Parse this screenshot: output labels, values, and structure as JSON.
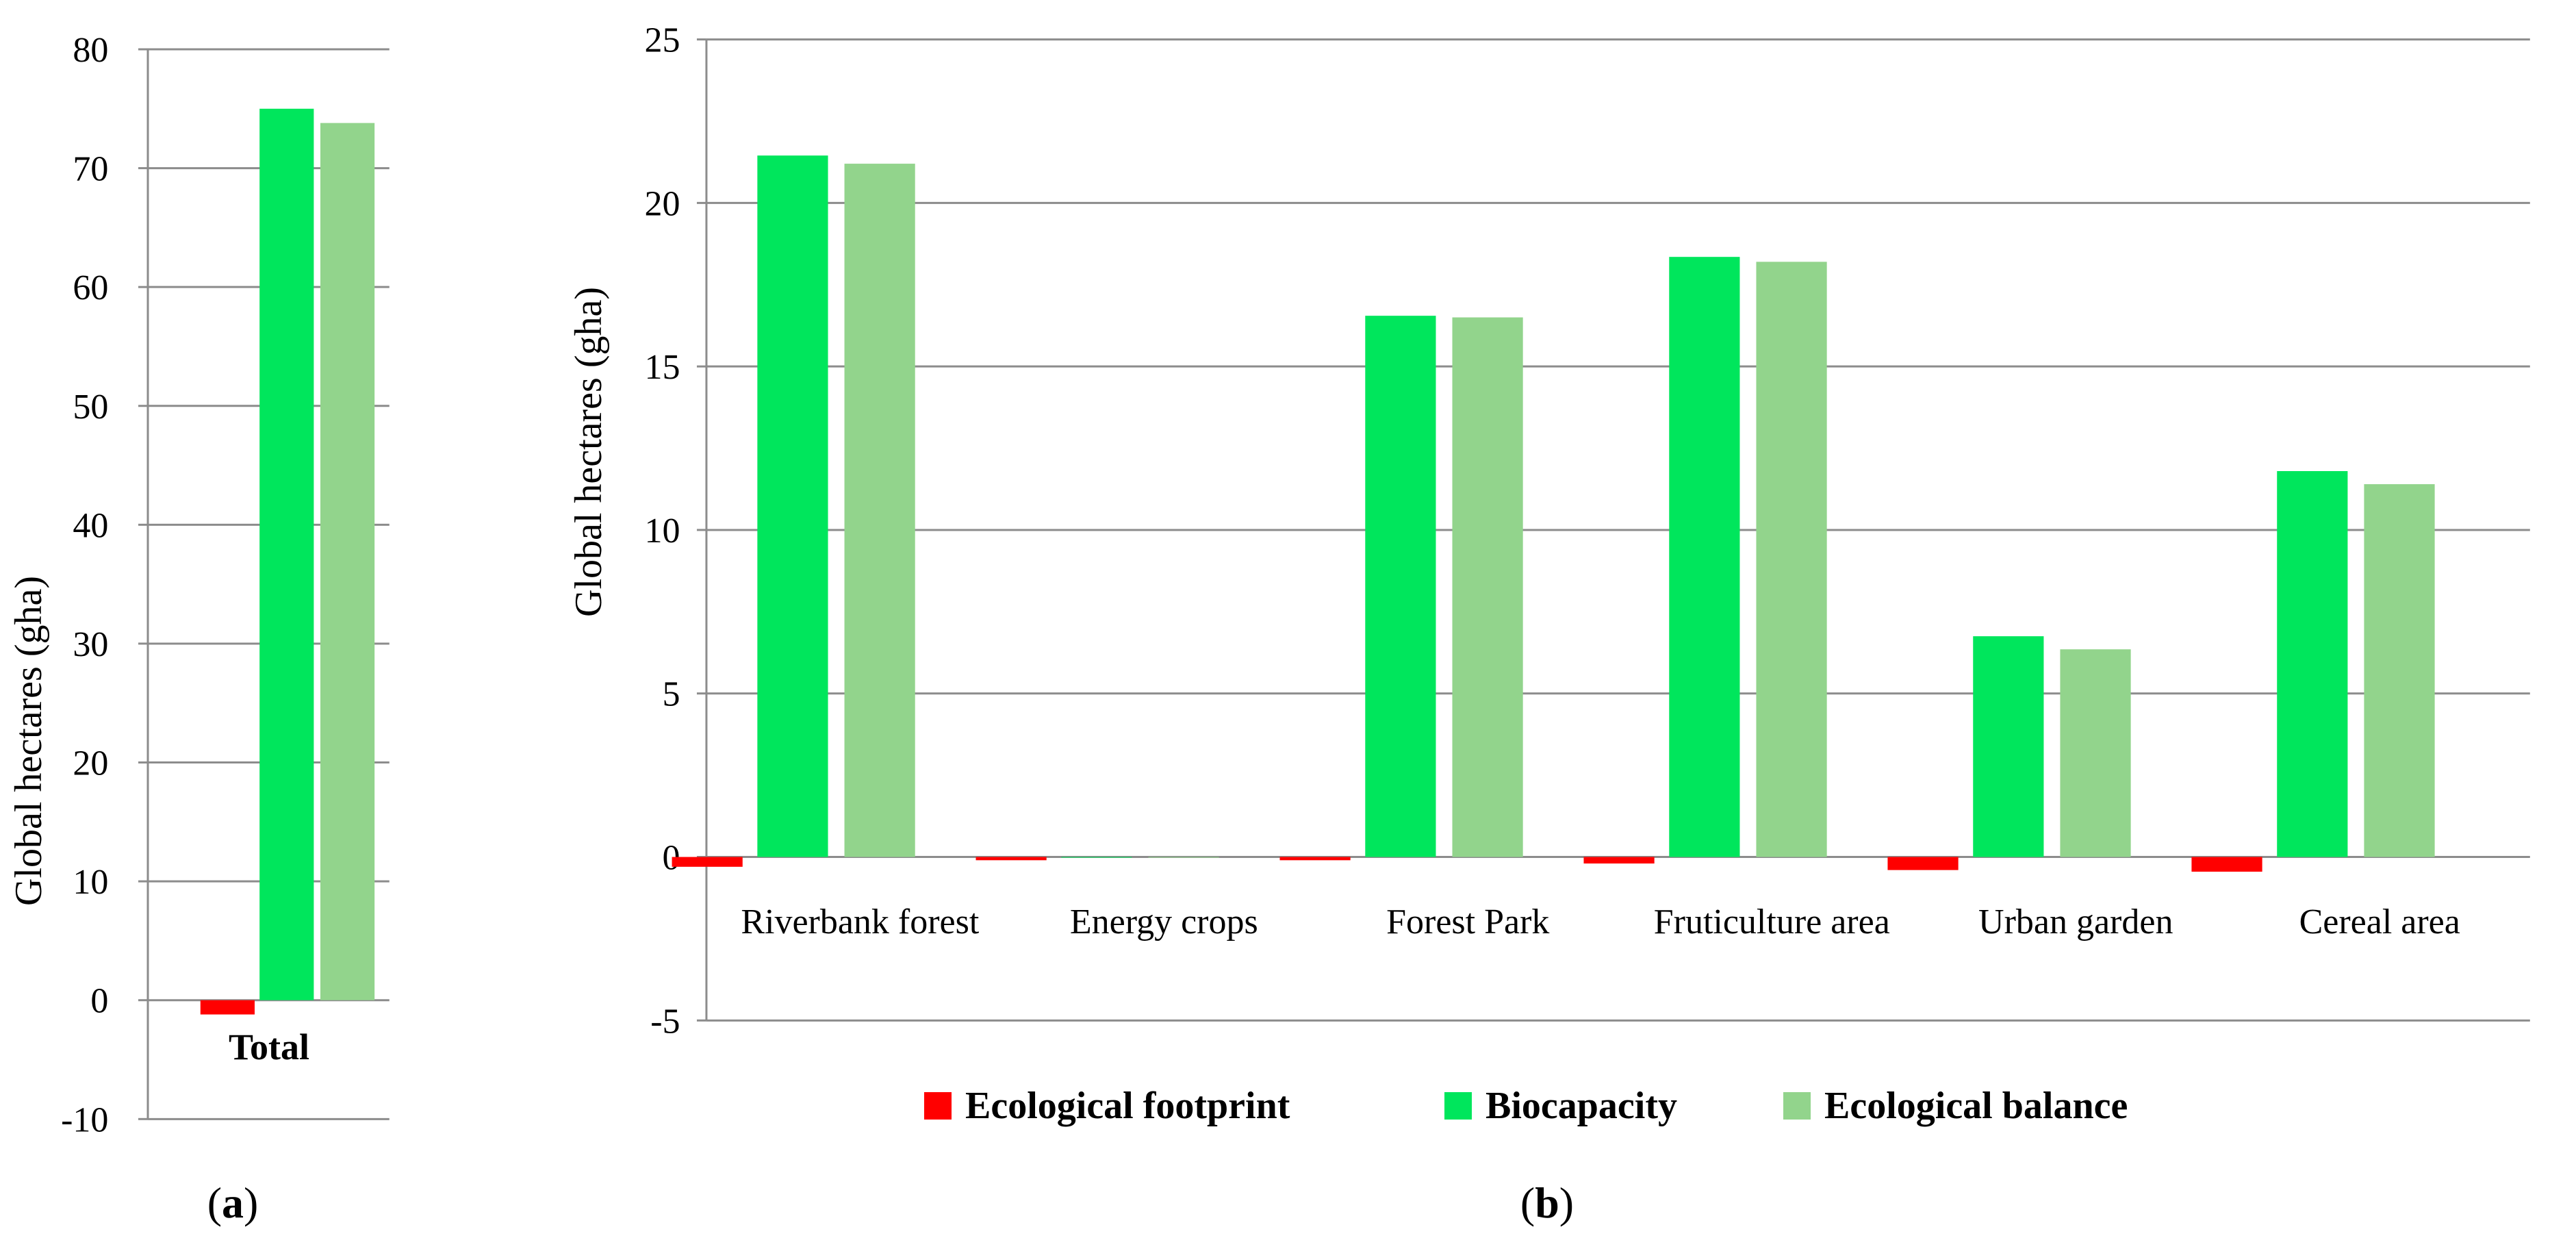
{
  "colors": {
    "ecological_footprint": "#FF0000",
    "biocapacity": "#00E65C",
    "ecological_balance": "#92D48C",
    "gridline": "#8C8C8C",
    "axis": "#8C8C8C",
    "text": "#000000"
  },
  "legend": {
    "ecological_footprint": "Ecological footprint",
    "biocapacity": "Biocapacity",
    "ecological_balance": "Ecological balance"
  },
  "chart_data": [
    {
      "panel": "a",
      "panel_label_open": "(",
      "panel_label_letter": "a",
      "panel_label_close": ")",
      "type": "bar",
      "ylabel": "Global hectares (gha)",
      "ylim": [
        -10,
        80
      ],
      "yticks": [
        80,
        70,
        60,
        50,
        40,
        30,
        20,
        10,
        0,
        -10
      ],
      "grid": true,
      "categories": [
        "Total"
      ],
      "series": [
        {
          "key": "ecological_footprint",
          "name": "Ecological footprint",
          "values": [
            -1.2
          ]
        },
        {
          "key": "biocapacity",
          "name": "Biocapacity",
          "values": [
            75.0
          ]
        },
        {
          "key": "ecological_balance",
          "name": "Ecological balance",
          "values": [
            73.8
          ]
        }
      ]
    },
    {
      "panel": "b",
      "panel_label_open": "(",
      "panel_label_letter": "b",
      "panel_label_close": ")",
      "type": "bar",
      "ylabel": "Global hectares (gha)",
      "ylim": [
        -5,
        25
      ],
      "yticks": [
        25,
        20,
        15,
        10,
        5,
        0,
        -5
      ],
      "grid": true,
      "legend_position": "bottom",
      "categories": [
        "Riverbank forest",
        "Energy crops",
        "Forest Park",
        "Fruticulture area",
        "Urban garden",
        "Cereal area"
      ],
      "series": [
        {
          "key": "ecological_footprint",
          "name": "Ecological footprint",
          "values": [
            -0.3,
            -0.1,
            -0.1,
            -0.2,
            -0.4,
            -0.45
          ]
        },
        {
          "key": "biocapacity",
          "name": "Biocapacity",
          "values": [
            21.45,
            0,
            16.55,
            18.35,
            6.75,
            11.8
          ]
        },
        {
          "key": "ecological_balance",
          "name": "Ecological balance",
          "values": [
            21.2,
            0,
            16.5,
            18.2,
            6.35,
            11.4
          ]
        }
      ]
    }
  ]
}
